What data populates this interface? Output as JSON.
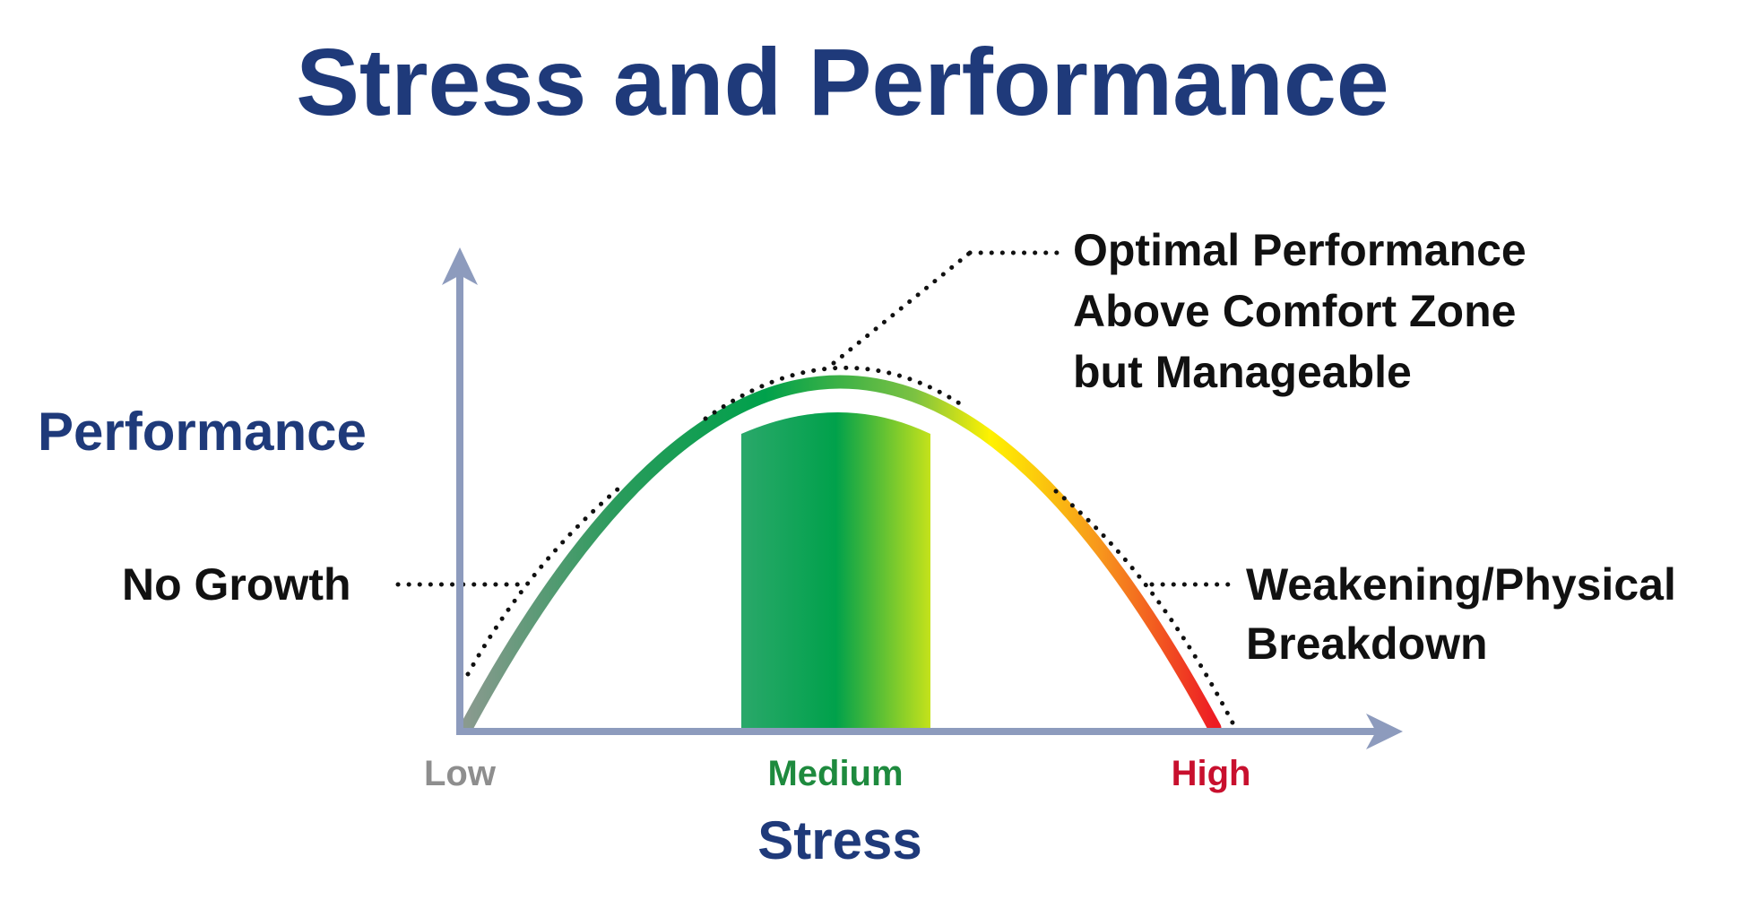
{
  "title": "Stress and Performance",
  "axes": {
    "x_title": "Stress",
    "y_title": "Performance",
    "x_ticks": [
      {
        "label": "Low",
        "color": "#8e8e8e"
      },
      {
        "label": "Medium",
        "color": "#1e8a3e"
      },
      {
        "label": "High",
        "color": "#c8102e"
      }
    ]
  },
  "annotations": {
    "optimal": [
      "Optimal Performance",
      "Above Comfort Zone",
      "but Manageable"
    ],
    "no_growth": [
      "No Growth"
    ],
    "weakening": [
      "Weakening/Physical",
      "Breakdown"
    ]
  },
  "colors": {
    "title": "#1f3a7a",
    "axis": "#8d9bbd",
    "text": "#111111",
    "curve_gradient": [
      "#8a9a8f",
      "#2a9b5c",
      "#00a14b",
      "#7cc242",
      "#fff200",
      "#f7941d",
      "#ed1c24"
    ],
    "zone_gradient": [
      "#2aa86a",
      "#00a14b",
      "#c4e21b"
    ]
  }
}
